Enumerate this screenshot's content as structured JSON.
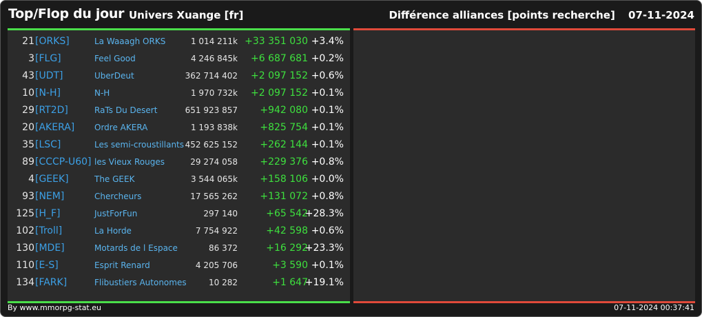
{
  "header": {
    "title": "Top/Flop du jour",
    "universe": "Univers Xuange [fr]",
    "category": "Différence alliances [points recherche]",
    "date": "07-11-2024"
  },
  "rows": [
    {
      "rank": "21",
      "tag": "[ORKS]",
      "name": "La Waaagh ORKS",
      "points": "1 014 211k",
      "diff": "+33 351 030",
      "pct": "+3.4%"
    },
    {
      "rank": "3",
      "tag": "[FLG]",
      "name": "Feel Good",
      "points": "4 246 845k",
      "diff": "+6 687 681",
      "pct": "+0.2%"
    },
    {
      "rank": "43",
      "tag": "[UDT]",
      "name": "UberDeut",
      "points": "362 714 402",
      "diff": "+2 097 152",
      "pct": "+0.6%"
    },
    {
      "rank": "10",
      "tag": "[N-H]",
      "name": "N-H",
      "points": "1 970 732k",
      "diff": "+2 097 152",
      "pct": "+0.1%"
    },
    {
      "rank": "29",
      "tag": "[RT2D]",
      "name": "RaTs Du Desert",
      "points": "651 923 857",
      "diff": "+942 080",
      "pct": "+0.1%"
    },
    {
      "rank": "20",
      "tag": "[AKERA]",
      "name": "Ordre AKERA",
      "points": "1 193 838k",
      "diff": "+825 754",
      "pct": "+0.1%"
    },
    {
      "rank": "35",
      "tag": "[LSC]",
      "name": "Les semi-croustillants",
      "points": "452 625 152",
      "diff": "+262 144",
      "pct": "+0.1%"
    },
    {
      "rank": "89",
      "tag": "[CCCP-U60]",
      "name": "les Vieux Rouges",
      "points": "29 274 058",
      "diff": "+229 376",
      "pct": "+0.8%"
    },
    {
      "rank": "4",
      "tag": "[GEEK]",
      "name": "The GEEK",
      "points": "3 544 065k",
      "diff": "+158 106",
      "pct": "+0.0%"
    },
    {
      "rank": "93",
      "tag": "[NEM]",
      "name": "Chercheurs",
      "points": "17 565 262",
      "diff": "+131 072",
      "pct": "+0.8%"
    },
    {
      "rank": "125",
      "tag": "[H_F]",
      "name": "JustForFun",
      "points": "297 140",
      "diff": "+65 542",
      "pct": "+28.3%"
    },
    {
      "rank": "102",
      "tag": "[Troll]",
      "name": "La Horde",
      "points": "7 754 922",
      "diff": "+42 598",
      "pct": "+0.6%"
    },
    {
      "rank": "130",
      "tag": "[MDE]",
      "name": "Motards de l Espace",
      "points": "86 372",
      "diff": "+16 292",
      "pct": "+23.3%"
    },
    {
      "rank": "110",
      "tag": "[E-S]",
      "name": "Esprit Renard",
      "points": "4 205 706",
      "diff": "+3 590",
      "pct": "+0.1%"
    },
    {
      "rank": "134",
      "tag": "[FARK]",
      "name": "Flibustiers Autonomes",
      "points": "10 282",
      "diff": "+1 647",
      "pct": "+19.1%"
    }
  ],
  "footer": {
    "credit": "By www.mmorpg-stat.eu",
    "timestamp": "07-11-2024 00:37:41"
  },
  "colors": {
    "top_accent": "#4ade4a",
    "flop_accent": "#e04a3a",
    "tag": "#3ca0e6",
    "diff": "#3ee03e"
  }
}
